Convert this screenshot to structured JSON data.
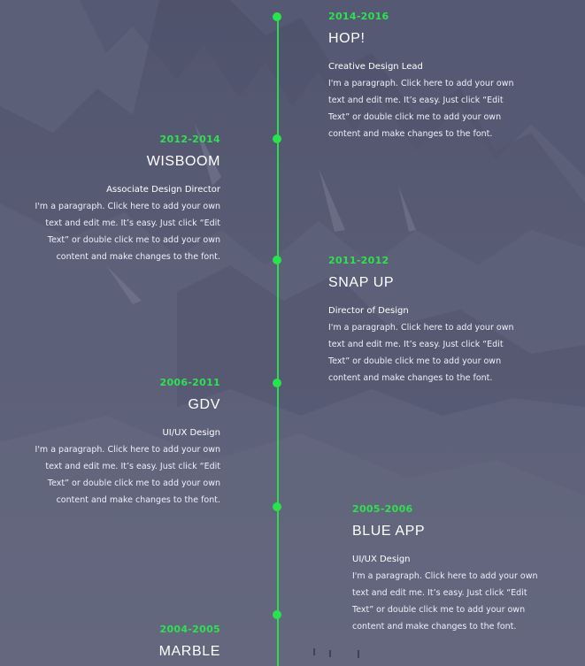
{
  "timeline": {
    "entries": [
      {
        "years": "2014-2016",
        "company": "HOP!",
        "role": "Creative Design Lead",
        "paragraph_lines": [
          "I'm a paragraph. Click here to add your own",
          "text and edit me. It’s easy. Just click “Edit",
          "Text” or double click me to add your own",
          "content and make changes to the font."
        ]
      },
      {
        "years": "2012-2014",
        "company": "WISBOOM",
        "role": "Associate Design Director",
        "paragraph_lines": [
          "I'm a paragraph. Click here to add your own",
          "text and edit me. It’s easy. Just click “Edit",
          "Text” or double click me to add your own",
          "content and make changes to the font."
        ]
      },
      {
        "years": "2011-2012",
        "company": "SNAP UP",
        "role": "Director of Design",
        "paragraph_lines": [
          "I'm a paragraph. Click here to add your own",
          "text and edit me. It’s easy. Just click “Edit",
          "Text” or double click me to add your own",
          "content and make changes to the font."
        ]
      },
      {
        "years": "2006-2011",
        "company": "GDV",
        "role": "UI/UX Design",
        "paragraph_lines": [
          "I'm a paragraph. Click here to add your own",
          "text and edit me. It’s easy. Just click “Edit",
          "Text” or double click me to add your own",
          "content and make changes to the font."
        ]
      },
      {
        "years": "2005-2006",
        "company": "BLUE APP",
        "role": "UI/UX Design",
        "paragraph_lines": [
          "I'm a paragraph. Click here to add your own",
          "text and edit me. It’s easy. Just click “Edit",
          "Text” or double click me to add your own",
          "content and make changes to the font."
        ]
      },
      {
        "years": "2004-2005",
        "company": "MARBLE"
      }
    ]
  },
  "colors": {
    "accent": "#27e34c",
    "background": "#5d6078",
    "text": "#ffffff"
  }
}
